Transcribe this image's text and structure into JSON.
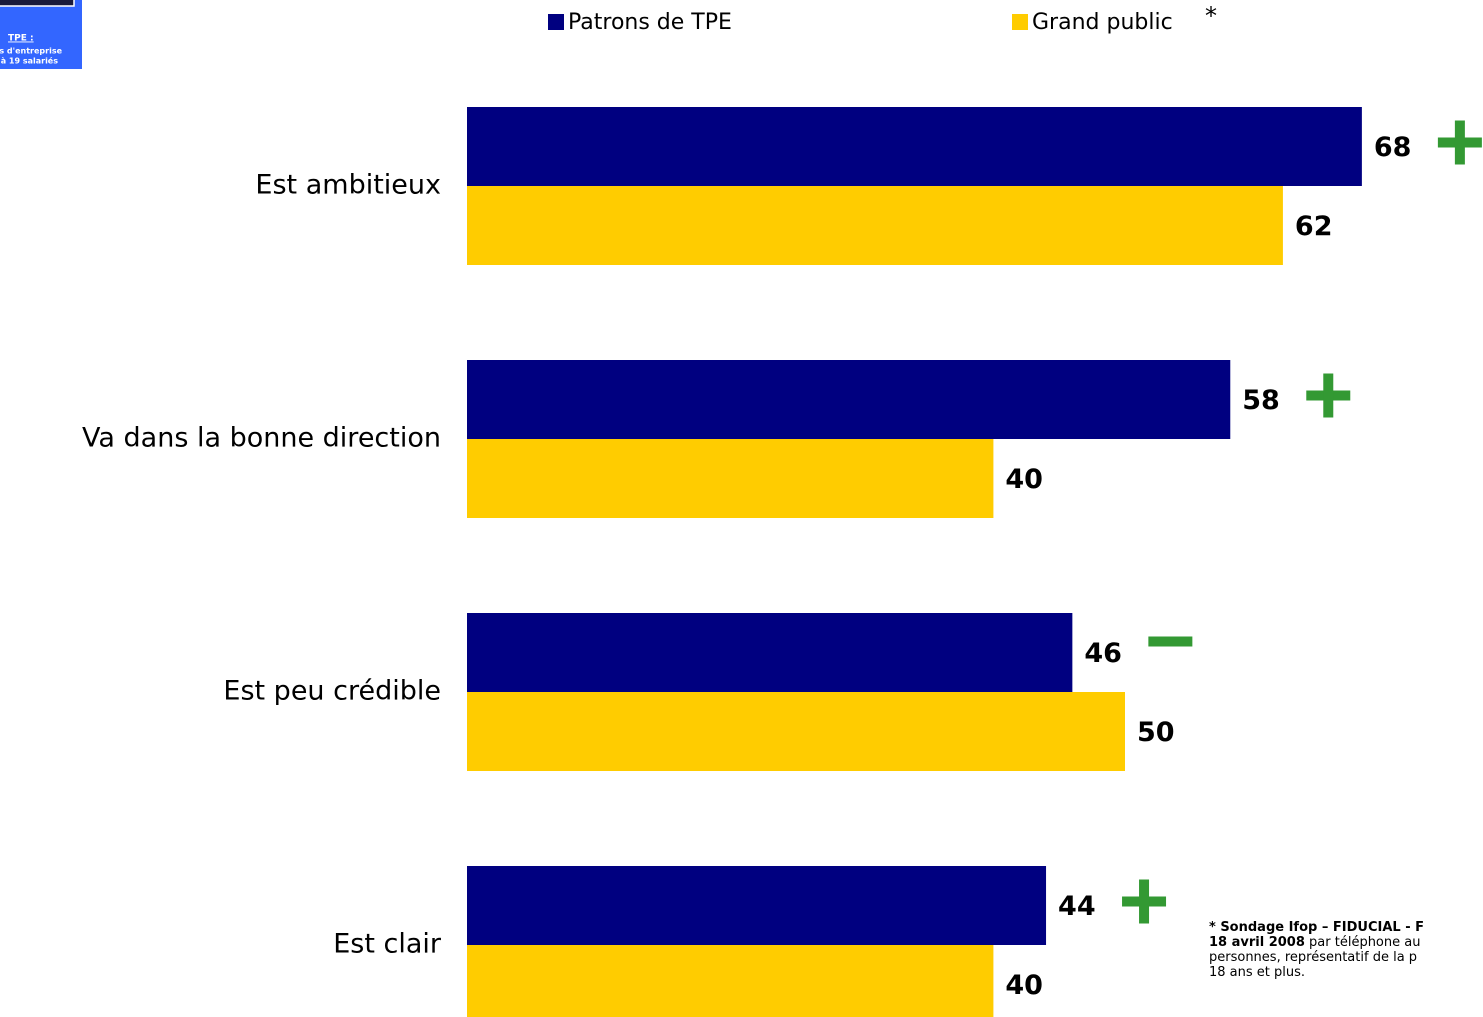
{
  "chart_data": {
    "type": "bar",
    "orientation": "horizontal",
    "categories": [
      "Est ambitieux",
      "Va dans la bonne direction",
      "Est peu crédible",
      "Est clair"
    ],
    "series": [
      {
        "name": "Patrons de TPE",
        "color": "#000080",
        "values": [
          68,
          58,
          46,
          44
        ]
      },
      {
        "name": "Grand public",
        "color": "#ffcc00",
        "values": [
          62,
          40,
          50,
          40
        ]
      }
    ],
    "legend_note": "*",
    "signs": [
      "+",
      "+",
      "-",
      "+"
    ],
    "sign_color": "#339933",
    "badge": [
      "TPE :",
      "s d'entreprise",
      "à 19 salariés"
    ],
    "footnote": [
      [
        "* Sondage Ifop – FIDUCIAL - F"
      ],
      [
        "18 avril 2008",
        " par téléphone au"
      ],
      [
        "personnes, représentatif de la p"
      ],
      [
        "18 ans et plus."
      ]
    ]
  }
}
